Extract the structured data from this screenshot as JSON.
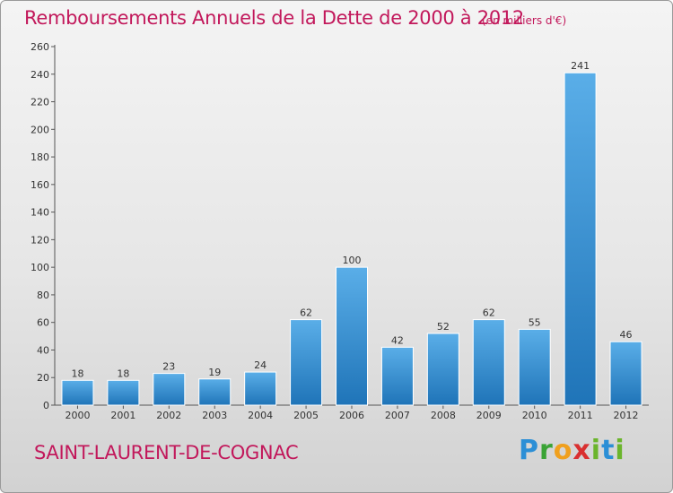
{
  "header": {
    "title": "Remboursements Annuels de la Dette de 2000 à 2012",
    "unit": "(en milliers d'€)"
  },
  "footer": {
    "commune": "SAINT-LAURENT-DE-COGNAC",
    "brand": "Proxiti"
  },
  "colors": {
    "title": "#c2185b",
    "bar_light": "#5aaee8",
    "bar_dark": "#1f74b8"
  },
  "chart_data": {
    "type": "bar",
    "title": "Remboursements Annuels de la Dette de 2000 à 2012",
    "subtitle": "(en milliers d'€)",
    "categories": [
      "2000",
      "2001",
      "2002",
      "2003",
      "2004",
      "2005",
      "2006",
      "2007",
      "2008",
      "2009",
      "2010",
      "2011",
      "2012"
    ],
    "values": [
      18,
      18,
      23,
      19,
      24,
      62,
      100,
      42,
      52,
      62,
      55,
      241,
      46
    ],
    "ylim": [
      0,
      260
    ],
    "yticks": [
      0,
      20,
      40,
      60,
      80,
      100,
      120,
      140,
      160,
      180,
      200,
      220,
      240,
      260
    ],
    "grid": false,
    "data_labels": true
  }
}
